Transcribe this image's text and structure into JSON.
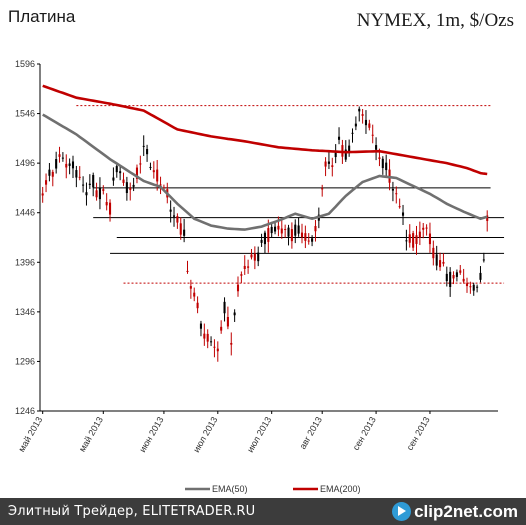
{
  "header": {
    "title_left": "Платина",
    "title_right": "NYMEX, 1m, $/Ozs"
  },
  "footer": {
    "text": "Элитный Трейдер, ELITETRADER.RU",
    "logo_text": "clip2net.com"
  },
  "chart_data": {
    "type": "candlestick",
    "ylim": [
      1246,
      1596
    ],
    "y_ticks": [
      1596,
      1546,
      1496,
      1446,
      1396,
      1346,
      1296,
      1246
    ],
    "x_tick_labels": [
      "май 2013",
      "май 2013",
      "июн 2013",
      "июл 2013",
      "июл 2013",
      "авг 2013",
      "сен 2013",
      "сен 2013"
    ],
    "grid": false,
    "legend": {
      "placement": "bottom",
      "entries": [
        {
          "name": "EMA(50)",
          "color": "#707070"
        },
        {
          "name": "EMA(200)",
          "color": "#c00000"
        }
      ]
    },
    "colors": {
      "up_candle": "#000000",
      "down_candle": "#c00000",
      "ema50": "#707070",
      "ema200": "#c00000",
      "levels": "#000000",
      "dotted_levels": "#c00000"
    },
    "bar_count": 133,
    "price_anchors": [
      [
        0,
        1470
      ],
      [
        5,
        1500
      ],
      [
        10,
        1488
      ],
      [
        13,
        1465
      ],
      [
        15,
        1475
      ],
      [
        18,
        1460
      ],
      [
        20,
        1450
      ],
      [
        22,
        1492
      ],
      [
        24,
        1475
      ],
      [
        26,
        1468
      ],
      [
        28,
        1485
      ],
      [
        30,
        1515
      ],
      [
        32,
        1493
      ],
      [
        34,
        1488
      ],
      [
        36,
        1470
      ],
      [
        38,
        1452
      ],
      [
        40,
        1440
      ],
      [
        42,
        1420
      ],
      [
        43,
        1395
      ],
      [
        44,
        1372
      ],
      [
        46,
        1350
      ],
      [
        48,
        1325
      ],
      [
        50,
        1310
      ],
      [
        52,
        1312
      ],
      [
        54,
        1350
      ],
      [
        56,
        1318
      ],
      [
        58,
        1372
      ],
      [
        60,
        1392
      ],
      [
        62,
        1396
      ],
      [
        64,
        1405
      ],
      [
        66,
        1420
      ],
      [
        68,
        1425
      ],
      [
        70,
        1432
      ],
      [
        72,
        1430
      ],
      [
        74,
        1425
      ],
      [
        76,
        1428
      ],
      [
        78,
        1418
      ],
      [
        80,
        1424
      ],
      [
        82,
        1440
      ],
      [
        84,
        1495
      ],
      [
        86,
        1492
      ],
      [
        88,
        1520
      ],
      [
        90,
        1505
      ],
      [
        92,
        1518
      ],
      [
        94,
        1545
      ],
      [
        96,
        1536
      ],
      [
        98,
        1525
      ],
      [
        100,
        1500
      ],
      [
        102,
        1492
      ],
      [
        104,
        1474
      ],
      [
        106,
        1450
      ],
      [
        108,
        1425
      ],
      [
        110,
        1418
      ],
      [
        112,
        1426
      ],
      [
        114,
        1430
      ],
      [
        116,
        1402
      ],
      [
        118,
        1395
      ],
      [
        120,
        1380
      ],
      [
        122,
        1375
      ],
      [
        124,
        1384
      ],
      [
        126,
        1372
      ],
      [
        128,
        1370
      ],
      [
        130,
        1384
      ],
      [
        131,
        1400
      ],
      [
        132,
        1440
      ]
    ],
    "ema50_anchors": [
      [
        0,
        1545
      ],
      [
        10,
        1525
      ],
      [
        20,
        1500
      ],
      [
        30,
        1478
      ],
      [
        35,
        1472
      ],
      [
        40,
        1455
      ],
      [
        45,
        1440
      ],
      [
        50,
        1433
      ],
      [
        55,
        1430
      ],
      [
        60,
        1429
      ],
      [
        65,
        1432
      ],
      [
        70,
        1438
      ],
      [
        75,
        1445
      ],
      [
        80,
        1440
      ],
      [
        85,
        1445
      ],
      [
        90,
        1463
      ],
      [
        95,
        1477
      ],
      [
        100,
        1483
      ],
      [
        105,
        1481
      ],
      [
        110,
        1473
      ],
      [
        115,
        1465
      ],
      [
        120,
        1455
      ],
      [
        125,
        1447
      ],
      [
        130,
        1440
      ],
      [
        132,
        1442
      ]
    ],
    "ema200_anchors": [
      [
        0,
        1574
      ],
      [
        10,
        1562
      ],
      [
        20,
        1556
      ],
      [
        30,
        1549
      ],
      [
        40,
        1530
      ],
      [
        50,
        1523
      ],
      [
        60,
        1518
      ],
      [
        70,
        1512
      ],
      [
        80,
        1509
      ],
      [
        90,
        1507
      ],
      [
        100,
        1508
      ],
      [
        110,
        1502
      ],
      [
        120,
        1496
      ],
      [
        126,
        1491
      ],
      [
        130,
        1486
      ],
      [
        132,
        1485
      ]
    ],
    "levels": [
      {
        "value": 1471,
        "from_bar": 15,
        "to_bar": 133,
        "style": "solid"
      },
      {
        "value": 1441,
        "from_bar": 15,
        "to_bar": 137,
        "style": "solid"
      },
      {
        "value": 1421,
        "from_bar": 22,
        "to_bar": 137,
        "style": "solid"
      },
      {
        "value": 1405,
        "from_bar": 20,
        "to_bar": 137,
        "style": "solid"
      },
      {
        "value": 1554,
        "from_bar": 10,
        "to_bar": 133,
        "style": "dotted"
      },
      {
        "value": 1375,
        "from_bar": 24,
        "to_bar": 137,
        "style": "dotted"
      }
    ]
  }
}
